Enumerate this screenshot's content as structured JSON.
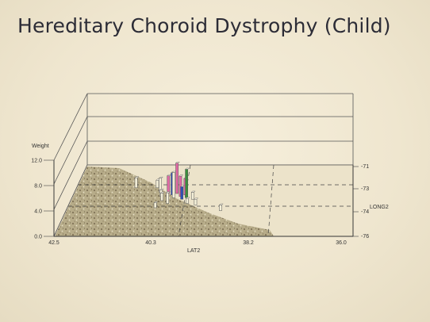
{
  "slide": {
    "title": "Hereditary Choroid Dystrophy (Child)"
  },
  "chart_data": {
    "type": "bar3d",
    "zlabel": "Weight",
    "xlabel": "LAT2",
    "ylabel": "LONG2",
    "z_ticks": [
      "0.0",
      "4.0",
      "8.0",
      "12.0"
    ],
    "x_ticks": [
      "42.5",
      "40.3",
      "38.2",
      "36.0"
    ],
    "y_ticks": [
      "-71",
      "-73",
      "-74",
      "-76"
    ],
    "zlim": [
      0,
      12
    ],
    "xlim": [
      42.5,
      36.0
    ],
    "ylim": [
      -76,
      -71
    ],
    "colors": {
      "bar_default": "#f4efd8",
      "bar_pink": "#e26aa6",
      "bar_blue": "#2f4fb8",
      "bar_green": "#3b8f3c",
      "bar_edge": "#555555"
    },
    "points": [
      {
        "lat": 41.1,
        "long": -72.6,
        "weight": 1.6,
        "color": "default"
      },
      {
        "lat": 40.6,
        "long": -72.6,
        "weight": 1.2,
        "color": "default"
      },
      {
        "lat": 40.5,
        "long": -72.9,
        "weight": 2.2,
        "color": "default"
      },
      {
        "lat": 40.3,
        "long": -73.0,
        "weight": 2.8,
        "color": "pink"
      },
      {
        "lat": 40.2,
        "long": -73.1,
        "weight": 3.5,
        "color": "blue"
      },
      {
        "lat": 40.1,
        "long": -73.0,
        "weight": 4.8,
        "color": "pink"
      },
      {
        "lat": 40.0,
        "long": -73.2,
        "weight": 3.2,
        "color": "pink"
      },
      {
        "lat": 39.9,
        "long": -73.1,
        "weight": 2.6,
        "color": "pink"
      },
      {
        "lat": 40.15,
        "long": -73.3,
        "weight": 4.0,
        "color": "default"
      },
      {
        "lat": 39.85,
        "long": -73.3,
        "weight": 4.5,
        "color": "green"
      },
      {
        "lat": 39.95,
        "long": -73.4,
        "weight": 2.0,
        "color": "blue"
      },
      {
        "lat": 40.4,
        "long": -73.5,
        "weight": 1.2,
        "color": "default"
      },
      {
        "lat": 39.7,
        "long": -73.4,
        "weight": 1.1,
        "color": "default"
      },
      {
        "lat": 40.25,
        "long": -73.7,
        "weight": 1.7,
        "color": "default"
      },
      {
        "lat": 39.8,
        "long": -73.7,
        "weight": 0.8,
        "color": "default"
      },
      {
        "lat": 39.6,
        "long": -73.8,
        "weight": 0.9,
        "color": "default"
      },
      {
        "lat": 39.0,
        "long": -74.2,
        "weight": 0.9,
        "color": "default"
      },
      {
        "lat": 40.5,
        "long": -74.0,
        "weight": 0.8,
        "color": "default"
      },
      {
        "lat": 40.45,
        "long": -73.2,
        "weight": 1.0,
        "color": "default"
      }
    ]
  }
}
